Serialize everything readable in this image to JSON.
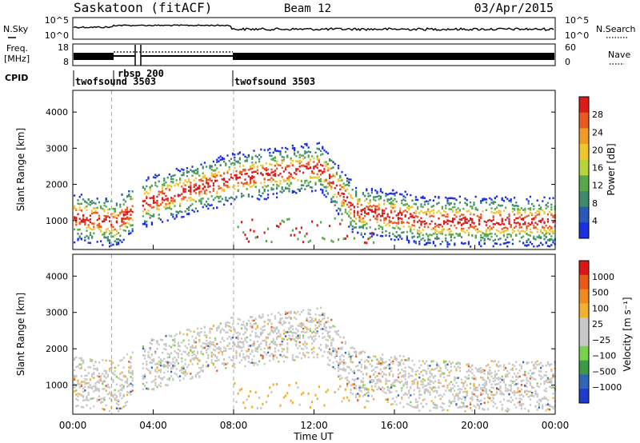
{
  "header": {
    "station": "Saskatoon (fitACF)",
    "beam": "Beam 12",
    "date": "03/Apr/2015"
  },
  "left_labels": {
    "nsky": "N.Sky",
    "freq": "Freq.",
    "freq_unit": "[MHz]",
    "cpid": "CPID"
  },
  "right_labels": {
    "nsearch": "N.Search",
    "nave": "Nave"
  },
  "cpid_segments": [
    "twofsound 3503",
    "rbsp 200",
    "twofsound 3503"
  ],
  "chart_data": [
    {
      "type": "line",
      "name": "noise",
      "left_ticks": [
        "10^5",
        "10^0"
      ],
      "right_ticks": [
        "10^5",
        "10^0"
      ],
      "x_range": [
        0,
        24
      ]
    },
    {
      "type": "line",
      "name": "frequency",
      "left_ticks": [
        "18",
        "8"
      ],
      "right_ticks": [
        "60",
        "0"
      ],
      "x_range": [
        0,
        24
      ]
    },
    {
      "type": "heatmap",
      "name": "power",
      "ylabel": "Slant Range [km]",
      "ylim": [
        200,
        4600
      ],
      "yticks": [
        "1000",
        "2000",
        "3000",
        "4000"
      ],
      "yticks_values": [
        1000,
        2000,
        3000,
        4000
      ],
      "x_range_hours": [
        0,
        24
      ],
      "colorbar": {
        "label": "Power [dB]",
        "ticks": [
          "4",
          "8",
          "12",
          "16",
          "20",
          "24",
          "28"
        ],
        "colors": [
          "#1a2fe0",
          "#2a59b8",
          "#3e8a6c",
          "#58a84a",
          "#b7d43a",
          "#f0c630",
          "#f09a28",
          "#e85a20",
          "#d81c18"
        ]
      }
    },
    {
      "type": "heatmap",
      "name": "velocity",
      "ylabel": "Slant Range [km]",
      "ylim": [
        200,
        4600
      ],
      "yticks": [
        "1000",
        "2000",
        "3000",
        "4000"
      ],
      "yticks_values": [
        1000,
        2000,
        3000,
        4000
      ],
      "x_range_hours": [
        0,
        24
      ],
      "colorbar": {
        "label": "Velocity [m s⁻¹]",
        "ticks": [
          "1000",
          "500",
          "100",
          "25",
          "−25",
          "−100",
          "−500",
          "−1000"
        ],
        "colors": [
          "#1e3cc8",
          "#2f66b8",
          "#3b9a4a",
          "#7ad14a",
          "#c8c8c8",
          "#c8c8c8",
          "#f0b030",
          "#f08a20",
          "#e85a1a",
          "#d81818"
        ]
      }
    }
  ],
  "x_axis": {
    "label": "Time UT",
    "ticks": [
      "00:00",
      "04:00",
      "08:00",
      "12:00",
      "16:00",
      "20:00",
      "00:00"
    ],
    "tick_hours": [
      0,
      4,
      8,
      12,
      16,
      20,
      24
    ]
  }
}
